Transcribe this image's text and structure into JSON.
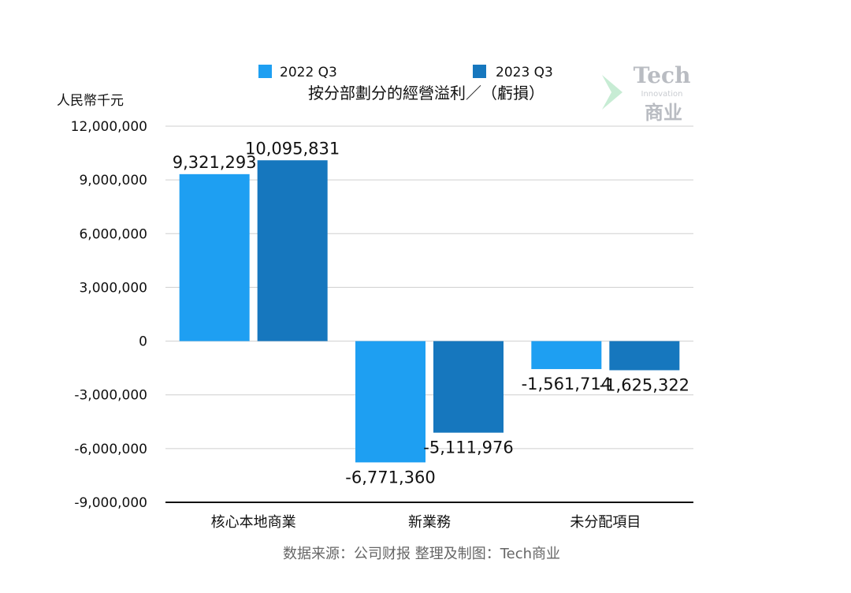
{
  "chart_data": {
    "type": "bar",
    "title": "按分部劃分的經營溢利／（虧損）",
    "ylabel": "人民幣千元",
    "xlabel": "",
    "categories": [
      "核心本地商業",
      "新業務",
      "未分配項目"
    ],
    "series": [
      {
        "name": "2022 Q3",
        "color": "#1e9ff2",
        "values": [
          9321293,
          -6771360,
          -1561714
        ],
        "labels": [
          "9,321,293",
          "-6,771,360",
          "-1,561,714"
        ]
      },
      {
        "name": "2023 Q3",
        "color": "#1677be",
        "values": [
          10095831,
          -5111976,
          -1625322
        ],
        "labels": [
          "10,095,831",
          "-5,111,976",
          "-1,625,322"
        ]
      }
    ],
    "ylim": [
      -9000000,
      12000000
    ],
    "yticks": [
      12000000,
      9000000,
      6000000,
      3000000,
      0,
      -3000000,
      -6000000,
      -9000000
    ],
    "ytick_labels": [
      "12,000,000",
      "9,000,000",
      "6,000,000",
      "3,000,000",
      "0",
      "-3,000,000",
      "-6,000,000",
      "-9,000,000"
    ],
    "grid": true,
    "legend_position": "top"
  },
  "source_note": "数据来源：公司财报 整理及制图：Tech商业",
  "watermark": {
    "line1": "Tech",
    "line2": "Innovation",
    "line3": "商业",
    "colors": [
      "#b9e7c9",
      "#cfe9f7"
    ]
  }
}
